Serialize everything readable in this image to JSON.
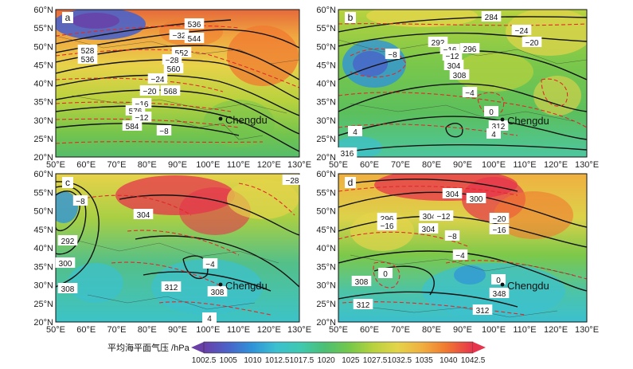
{
  "figure": {
    "lat_ticks": [
      "60°N",
      "55°N",
      "50°N",
      "45°N",
      "40°N",
      "35°N",
      "30°N",
      "25°N",
      "20°N"
    ],
    "lon_ticks": [
      "50°E",
      "60°E",
      "70°E",
      "80°E",
      "90°E",
      "100°E",
      "110°E",
      "120°E",
      "130°E"
    ],
    "city": "Chengdu",
    "panels": [
      {
        "letter": "a",
        "labels": [
          "536",
          "528",
          "536",
          "−32",
          "544",
          "552",
          "−28",
          "560",
          "−24",
          "−20",
          "568",
          "−16",
          "576",
          "−12",
          "584",
          "−8"
        ]
      },
      {
        "letter": "b",
        "labels": [
          "284",
          "−24",
          "−20",
          "292",
          "−16",
          "296",
          "−8",
          "−12",
          "304",
          "308",
          "−4",
          "0",
          "312",
          "4",
          "4",
          "316"
        ]
      },
      {
        "letter": "c",
        "labels": [
          "−28",
          "−8",
          "304",
          "292",
          "300",
          "308",
          "−4",
          "312",
          "308",
          "4"
        ]
      },
      {
        "letter": "d",
        "labels": [
          "304",
          "300",
          "296",
          "−16",
          "304",
          "−12",
          "304",
          "−8",
          "−20",
          "−16",
          "−4",
          "308",
          "0",
          "0",
          "348",
          "312",
          "312"
        ]
      }
    ]
  },
  "colorbar": {
    "title": "平均海平面气压 /hPa",
    "ticks": [
      "1002.5",
      "1005",
      "1010",
      "1012.5",
      "1017.5",
      "1020",
      "1025",
      "1027.5",
      "1032.5",
      "1035",
      "1040",
      "1042.5"
    ],
    "colors": [
      "#6a3fa8",
      "#4a63c9",
      "#2f93d8",
      "#3cc0cf",
      "#3fc9b0",
      "#4bbf73",
      "#74c84a",
      "#b8d23e",
      "#e4d44a",
      "#f0b040",
      "#f07a30",
      "#e6344c"
    ]
  }
}
